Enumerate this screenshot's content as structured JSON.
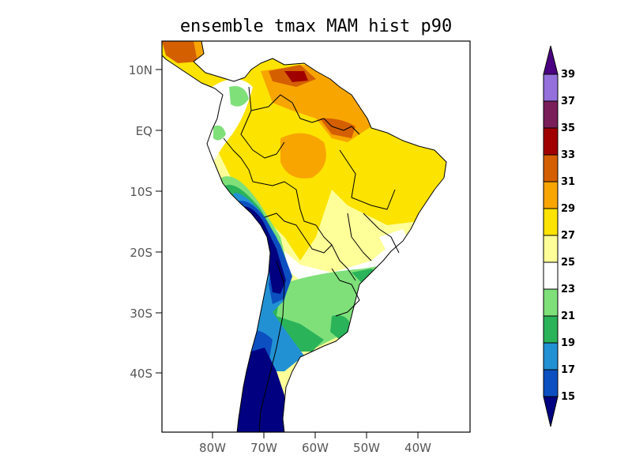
{
  "title": "ensemble tmax MAM hist p90",
  "map": {
    "lat_labels": [
      "10N",
      "EQ",
      "10S",
      "20S",
      "30S",
      "40S"
    ],
    "lon_labels": [
      "80W",
      "70W",
      "60W",
      "50W",
      "40W"
    ],
    "region": "South America"
  },
  "colorbar": {
    "labels": [
      "15",
      "17",
      "19",
      "21",
      "23",
      "25",
      "27",
      "29",
      "31",
      "33",
      "35",
      "37",
      "39"
    ],
    "colors": {
      "below_15": "#000080",
      "15_17": "#0c4fc0",
      "17_19": "#2291d4",
      "19_21": "#2bb35a",
      "21_23": "#7fe07a",
      "23_25": "#ffffff",
      "25_27": "#ffff99",
      "27_29": "#fce300",
      "29_31": "#f8a500",
      "31_33": "#d45f00",
      "33_35": "#a00000",
      "35_37": "#7a1e5a",
      "37_39": "#9370db",
      "above_39": "#4b0082"
    }
  }
}
